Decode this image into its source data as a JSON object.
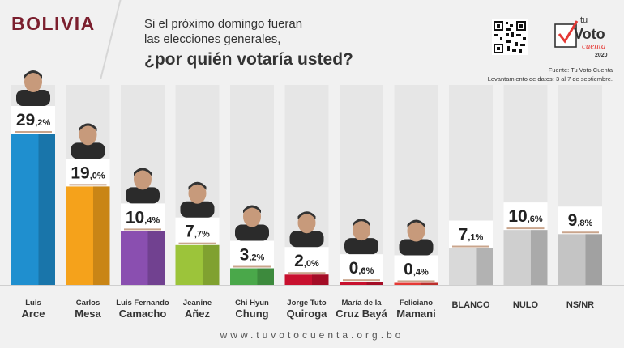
{
  "header": {
    "country": "BOLIVIA",
    "question_line1": "Si el próximo domingo fueran",
    "question_line2": "las elecciones generales,",
    "question_main": "¿por quién votaría usted?",
    "source": "Fuente: Tu Voto Cuenta",
    "survey_dates": "Levantamiento de datos: 3 al 7 de septiembre.",
    "logo_line1": "tu",
    "logo_line2": "Voto",
    "logo_line3": "cuenta",
    "logo_year": "2020"
  },
  "footer": {
    "url": "www.tuvotocuenta.org.bo"
  },
  "colors": {
    "brand": "#7b1f2e",
    "text": "#333333",
    "separator": "#c9a58c"
  },
  "chart_data": {
    "type": "bar",
    "title": "¿por quién votaría usted?",
    "unit": "%",
    "ylim": [
      0,
      30
    ],
    "bars": [
      {
        "line1": "Luis",
        "line2": "Arce",
        "int": "29",
        "dec": ",2%",
        "value": 29.2,
        "color": "#1f8fcf",
        "photo": true
      },
      {
        "line1": "Carlos",
        "line2": "Mesa",
        "int": "19",
        "dec": ",0%",
        "value": 19.0,
        "color": "#f5a21b",
        "photo": true
      },
      {
        "line1": "Luis Fernando",
        "line2": "Camacho",
        "int": "10",
        "dec": ",4%",
        "value": 10.4,
        "color": "#8a4fb0",
        "photo": true
      },
      {
        "line1": "Jeanine",
        "line2": "Añez",
        "int": "7",
        "dec": ",7%",
        "value": 7.7,
        "color": "#9cc43a",
        "photo": true
      },
      {
        "line1": "Chi Hyun",
        "line2": "Chung",
        "int": "3",
        "dec": ",2%",
        "value": 3.2,
        "color": "#4aa84a",
        "photo": true
      },
      {
        "line1": "Jorge Tuto",
        "line2": "Quiroga",
        "int": "2",
        "dec": ",0%",
        "value": 2.0,
        "color": "#c8102e",
        "photo": true
      },
      {
        "line1": "María de la",
        "line2": "Cruz Bayá",
        "int": "0",
        "dec": ",6%",
        "value": 0.6,
        "color": "#c8102e",
        "photo": true
      },
      {
        "line1": "Feliciano",
        "line2": "Mamani",
        "int": "0",
        "dec": ",4%",
        "value": 0.4,
        "color": "#e53935",
        "photo": true
      },
      {
        "line1": "",
        "line2": "BLANCO",
        "int": "7",
        "dec": ",1%",
        "value": 7.1,
        "color": "#d9d9d9",
        "photo": false
      },
      {
        "line1": "",
        "line2": "NULO",
        "int": "10",
        "dec": ",6%",
        "value": 10.6,
        "color": "#cfcfcf",
        "photo": false
      },
      {
        "line1": "",
        "line2": "NS/NR",
        "int": "9",
        "dec": ",8%",
        "value": 9.8,
        "color": "#c4c4c4",
        "photo": false
      }
    ]
  }
}
